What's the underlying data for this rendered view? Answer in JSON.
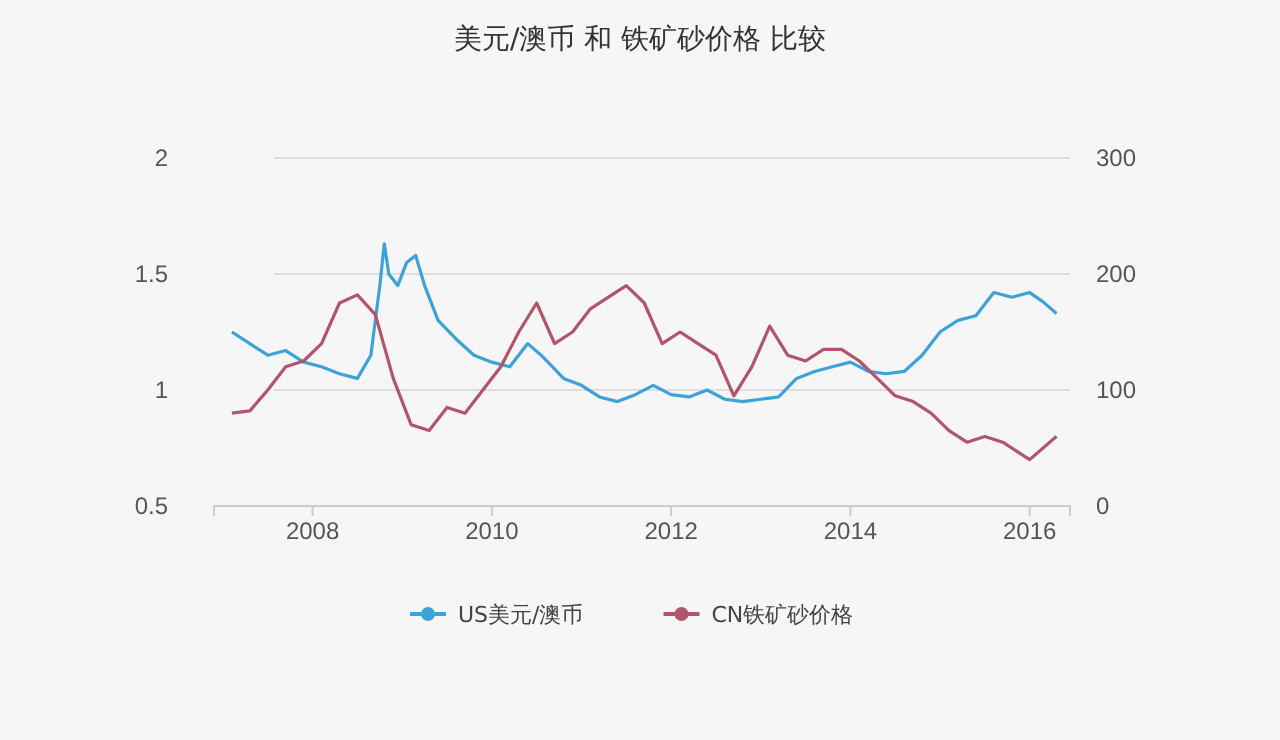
{
  "chart_data": {
    "type": "line",
    "title": "美元/澳币 和 铁矿砂价格 比较",
    "xlim": [
      2006.9,
      2016.45
    ],
    "xticks": [
      2008,
      2010,
      2012,
      2014,
      2016
    ],
    "ylim": [
      0.5,
      2
    ],
    "yticks": [
      0.5,
      1,
      1.5,
      2
    ],
    "y2lim": [
      0,
      300
    ],
    "y2ticks": [
      0,
      100,
      200,
      300
    ],
    "grid": "y",
    "legend": "bottom",
    "line_style": "solid",
    "marker": "none",
    "series": [
      {
        "name": "US美元/澳币",
        "color": "#3fa2d6",
        "x": [
          2007.1,
          2007.3,
          2007.5,
          2007.7,
          2007.9,
          2008.1,
          2008.3,
          2008.5,
          2008.65,
          2008.75,
          2008.8,
          2008.85,
          2008.95,
          2009.05,
          2009.15,
          2009.25,
          2009.4,
          2009.6,
          2009.8,
          2010.0,
          2010.2,
          2010.4,
          2010.55,
          2010.8,
          2011.0,
          2011.2,
          2011.4,
          2011.6,
          2011.8,
          2012.0,
          2012.2,
          2012.4,
          2012.6,
          2012.8,
          2013.0,
          2013.2,
          2013.4,
          2013.6,
          2013.8,
          2014.0,
          2014.2,
          2014.4,
          2014.6,
          2014.8,
          2015.0,
          2015.2,
          2015.4,
          2015.6,
          2015.8,
          2016.0,
          2016.15,
          2016.3
        ],
        "values": [
          1.25,
          1.2,
          1.15,
          1.17,
          1.12,
          1.1,
          1.07,
          1.05,
          1.15,
          1.45,
          1.63,
          1.5,
          1.45,
          1.55,
          1.58,
          1.45,
          1.3,
          1.22,
          1.15,
          1.12,
          1.1,
          1.2,
          1.15,
          1.05,
          1.02,
          0.97,
          0.95,
          0.98,
          1.02,
          0.98,
          0.97,
          1.0,
          0.96,
          0.95,
          0.96,
          0.97,
          1.05,
          1.08,
          1.1,
          1.12,
          1.08,
          1.07,
          1.08,
          1.15,
          1.25,
          1.3,
          1.32,
          1.42,
          1.4,
          1.42,
          1.38,
          1.33
        ]
      },
      {
        "name": "CN铁矿砂价格",
        "color": "#b0556a",
        "axis": "y2",
        "x": [
          2007.1,
          2007.3,
          2007.5,
          2007.7,
          2007.9,
          2008.1,
          2008.3,
          2008.5,
          2008.7,
          2008.9,
          2009.1,
          2009.3,
          2009.5,
          2009.7,
          2009.9,
          2010.1,
          2010.3,
          2010.5,
          2010.7,
          2010.9,
          2011.1,
          2011.3,
          2011.5,
          2011.7,
          2011.9,
          2012.1,
          2012.3,
          2012.5,
          2012.7,
          2012.9,
          2013.1,
          2013.3,
          2013.5,
          2013.7,
          2013.9,
          2014.1,
          2014.3,
          2014.5,
          2014.7,
          2014.9,
          2015.1,
          2015.3,
          2015.5,
          2015.7,
          2015.9,
          2016.0,
          2016.15,
          2016.3
        ],
        "values": [
          80,
          82,
          100,
          120,
          125,
          140,
          175,
          182,
          165,
          110,
          70,
          65,
          85,
          80,
          100,
          120,
          150,
          175,
          140,
          150,
          170,
          180,
          190,
          175,
          140,
          150,
          140,
          130,
          95,
          120,
          155,
          130,
          125,
          135,
          135,
          125,
          110,
          95,
          90,
          80,
          65,
          55,
          60,
          55,
          45,
          40,
          50,
          60
        ]
      }
    ]
  }
}
